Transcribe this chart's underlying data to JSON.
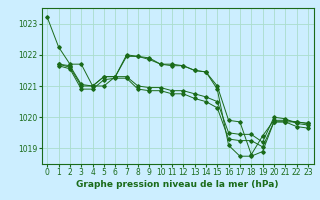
{
  "background_color": "#cceeff",
  "grid_color": "#aaddcc",
  "line_color": "#1a6b1a",
  "marker_color": "#1a6b1a",
  "xlabel": "Graphe pression niveau de la mer (hPa)",
  "xlabel_fontsize": 6.5,
  "tick_fontsize": 5.5,
  "ylim": [
    1018.5,
    1023.5
  ],
  "xlim": [
    -0.5,
    23.5
  ],
  "yticks": [
    1019,
    1020,
    1021,
    1022,
    1023
  ],
  "xticks": [
    0,
    1,
    2,
    3,
    4,
    5,
    6,
    7,
    8,
    9,
    10,
    11,
    12,
    13,
    14,
    15,
    16,
    17,
    18,
    19,
    20,
    21,
    22,
    23
  ],
  "series": [
    {
      "x": [
        0,
        1,
        2,
        3,
        4,
        5,
        6,
        7,
        8,
        9,
        10,
        11,
        12,
        13,
        14,
        15,
        16,
        17,
        18,
        19,
        20,
        21,
        22,
        23
      ],
      "y": [
        1023.2,
        1022.25,
        1021.7,
        1021.7,
        1021.0,
        1021.0,
        1021.3,
        1022.0,
        1021.95,
        1021.9,
        1021.7,
        1021.7,
        1021.65,
        1021.5,
        1021.45,
        1020.9,
        1019.1,
        1018.75,
        1018.75,
        1018.9,
        1019.85,
        1019.85,
        1019.85,
        1019.8
      ]
    },
    {
      "x": [
        1,
        2,
        3,
        4,
        5,
        6,
        7,
        8,
        9,
        10,
        11,
        12,
        13,
        14,
        15,
        16,
        17,
        18,
        19,
        20,
        21,
        22,
        23
      ],
      "y": [
        1021.7,
        1021.65,
        1021.05,
        1021.0,
        1021.3,
        1021.3,
        1021.95,
        1021.95,
        1021.85,
        1021.7,
        1021.65,
        1021.65,
        1021.5,
        1021.45,
        1021.0,
        1019.9,
        1019.85,
        1018.8,
        1019.4,
        1019.9,
        1019.9,
        1019.85,
        1019.8
      ]
    },
    {
      "x": [
        1,
        2,
        3,
        4,
        5,
        6,
        7,
        8,
        9,
        10,
        11,
        12,
        13,
        14,
        15,
        16,
        17,
        18,
        19,
        20,
        21,
        22,
        23
      ],
      "y": [
        1021.7,
        1021.6,
        1021.0,
        1021.0,
        1021.3,
        1021.3,
        1021.3,
        1021.0,
        1020.95,
        1020.95,
        1020.85,
        1020.85,
        1020.75,
        1020.65,
        1020.5,
        1019.5,
        1019.45,
        1019.45,
        1019.2,
        1020.0,
        1019.95,
        1019.8,
        1019.75
      ]
    },
    {
      "x": [
        1,
        2,
        3,
        4,
        5,
        6,
        7,
        8,
        9,
        10,
        11,
        12,
        13,
        14,
        15,
        16,
        17,
        18,
        19,
        20,
        21,
        22,
        23
      ],
      "y": [
        1021.65,
        1021.55,
        1020.9,
        1020.9,
        1021.2,
        1021.25,
        1021.25,
        1020.9,
        1020.85,
        1020.85,
        1020.75,
        1020.75,
        1020.6,
        1020.5,
        1020.3,
        1019.3,
        1019.25,
        1019.25,
        1019.05,
        1019.85,
        1019.85,
        1019.7,
        1019.65
      ]
    }
  ]
}
